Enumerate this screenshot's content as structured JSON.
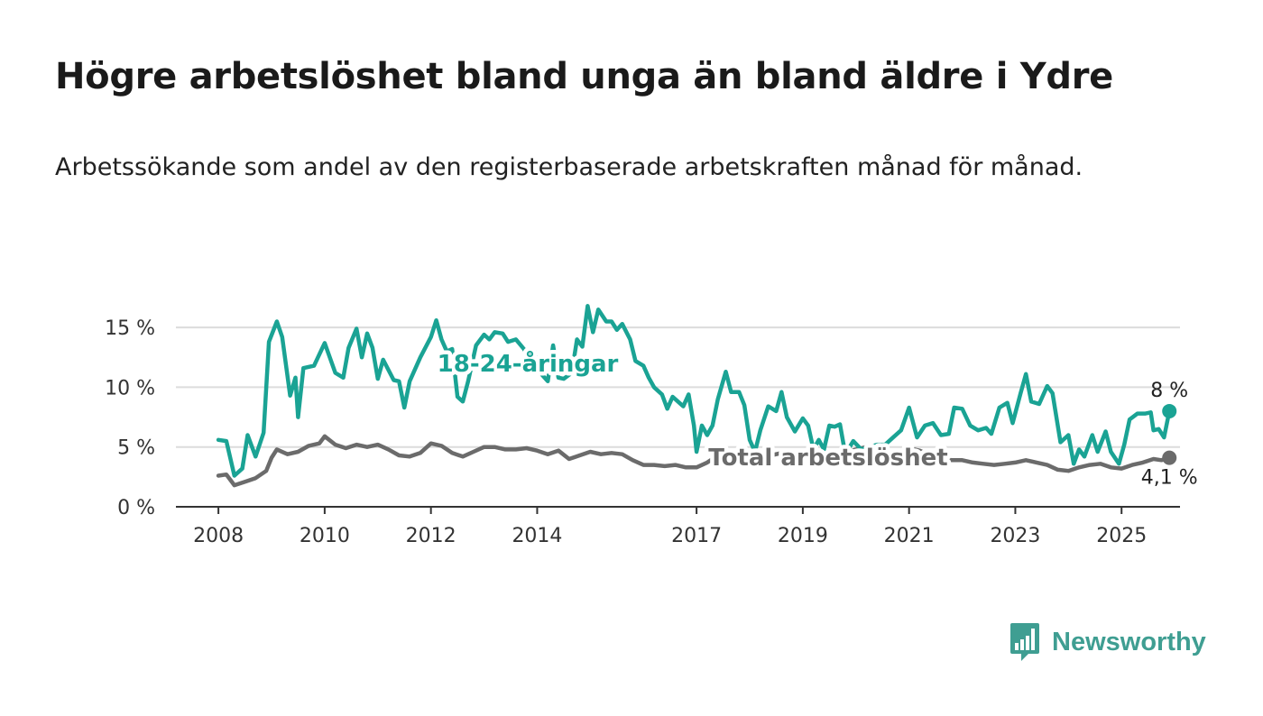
{
  "title": "Högre arbetslöshet bland unga än bland äldre i Ydre",
  "subtitle": "Arbetssökande som andel av den registerbaserade arbetskraften månad för månad.",
  "brand": {
    "name": "Newsworthy",
    "color": "#3f9e92"
  },
  "chart_data": {
    "type": "line",
    "ylim": [
      0,
      17.5
    ],
    "y_ticks": [
      0,
      5,
      10,
      15
    ],
    "y_tick_labels": [
      "0 %",
      "5 %",
      "10 %",
      "15 %"
    ],
    "x_ticks": [
      2008,
      2010,
      2012,
      2014,
      2017,
      2019,
      2021,
      2023,
      2025
    ],
    "x_tick_labels": [
      "2008",
      "2010",
      "2012",
      "2014",
      "2017",
      "2019",
      "2021",
      "2023",
      "2025"
    ],
    "xlim": [
      2007.2,
      2026.1
    ],
    "grid": true,
    "series": [
      {
        "name": "18-24-åringar",
        "color": "#1aa394",
        "end_label": "8 %",
        "points": [
          [
            2008.0,
            5.6
          ],
          [
            2008.15,
            5.5
          ],
          [
            2008.3,
            2.6
          ],
          [
            2008.45,
            3.2
          ],
          [
            2008.55,
            6.0
          ],
          [
            2008.7,
            4.2
          ],
          [
            2008.85,
            6.2
          ],
          [
            2008.95,
            13.8
          ],
          [
            2009.1,
            15.5
          ],
          [
            2009.2,
            14.2
          ],
          [
            2009.35,
            9.3
          ],
          [
            2009.45,
            10.8
          ],
          [
            2009.5,
            7.5
          ],
          [
            2009.6,
            11.6
          ],
          [
            2009.8,
            11.8
          ],
          [
            2010.0,
            13.7
          ],
          [
            2010.2,
            11.2
          ],
          [
            2010.35,
            10.8
          ],
          [
            2010.45,
            13.3
          ],
          [
            2010.6,
            14.9
          ],
          [
            2010.7,
            12.5
          ],
          [
            2010.8,
            14.5
          ],
          [
            2010.9,
            13.3
          ],
          [
            2011.0,
            10.7
          ],
          [
            2011.1,
            12.3
          ],
          [
            2011.3,
            10.6
          ],
          [
            2011.4,
            10.5
          ],
          [
            2011.5,
            8.3
          ],
          [
            2011.6,
            10.5
          ],
          [
            2011.8,
            12.5
          ],
          [
            2012.0,
            14.2
          ],
          [
            2012.1,
            15.6
          ],
          [
            2012.2,
            14.0
          ],
          [
            2012.3,
            13.0
          ],
          [
            2012.4,
            13.2
          ],
          [
            2012.5,
            9.2
          ],
          [
            2012.6,
            8.8
          ],
          [
            2012.7,
            10.5
          ],
          [
            2012.85,
            13.5
          ],
          [
            2013.0,
            14.4
          ],
          [
            2013.1,
            14.0
          ],
          [
            2013.2,
            14.6
          ],
          [
            2013.35,
            14.5
          ],
          [
            2013.45,
            13.8
          ],
          [
            2013.6,
            14.0
          ],
          [
            2013.75,
            13.2
          ],
          [
            2013.85,
            12.5
          ],
          [
            2013.95,
            13.0
          ],
          [
            2014.0,
            11.5
          ],
          [
            2014.2,
            10.5
          ],
          [
            2014.3,
            13.5
          ],
          [
            2014.4,
            10.8
          ],
          [
            2014.5,
            10.7
          ],
          [
            2014.65,
            11.2
          ],
          [
            2014.75,
            14.0
          ],
          [
            2014.85,
            13.4
          ],
          [
            2014.95,
            16.8
          ],
          [
            2015.05,
            14.6
          ],
          [
            2015.15,
            16.5
          ],
          [
            2015.3,
            15.5
          ],
          [
            2015.4,
            15.5
          ],
          [
            2015.5,
            14.8
          ],
          [
            2015.6,
            15.3
          ],
          [
            2015.75,
            14.0
          ],
          [
            2015.85,
            12.2
          ],
          [
            2016.0,
            11.8
          ],
          [
            2016.1,
            10.8
          ],
          [
            2016.2,
            10.0
          ],
          [
            2016.35,
            9.4
          ],
          [
            2016.45,
            8.2
          ],
          [
            2016.55,
            9.2
          ],
          [
            2016.65,
            8.8
          ],
          [
            2016.75,
            8.4
          ],
          [
            2016.85,
            9.4
          ],
          [
            2016.95,
            6.8
          ],
          [
            2017.0,
            4.6
          ],
          [
            2017.1,
            6.8
          ],
          [
            2017.2,
            6.0
          ],
          [
            2017.3,
            6.8
          ],
          [
            2017.4,
            9.0
          ],
          [
            2017.55,
            11.3
          ],
          [
            2017.65,
            9.6
          ],
          [
            2017.8,
            9.6
          ],
          [
            2017.9,
            8.5
          ],
          [
            2018.0,
            5.6
          ],
          [
            2018.1,
            4.6
          ],
          [
            2018.2,
            6.4
          ],
          [
            2018.35,
            8.4
          ],
          [
            2018.5,
            8.0
          ],
          [
            2018.6,
            9.6
          ],
          [
            2018.7,
            7.5
          ],
          [
            2018.85,
            6.3
          ],
          [
            2019.0,
            7.4
          ],
          [
            2019.1,
            6.8
          ],
          [
            2019.2,
            4.8
          ],
          [
            2019.3,
            5.6
          ],
          [
            2019.4,
            4.8
          ],
          [
            2019.5,
            6.8
          ],
          [
            2019.6,
            6.7
          ],
          [
            2019.7,
            6.9
          ],
          [
            2019.8,
            4.4
          ],
          [
            2019.95,
            5.5
          ],
          [
            2020.1,
            4.8
          ],
          [
            2020.25,
            5.0
          ],
          [
            2020.4,
            5.2
          ],
          [
            2020.55,
            5.2
          ],
          [
            2020.7,
            5.8
          ],
          [
            2020.85,
            6.4
          ],
          [
            2021.0,
            8.3
          ],
          [
            2021.15,
            5.8
          ],
          [
            2021.3,
            6.8
          ],
          [
            2021.45,
            7.0
          ],
          [
            2021.6,
            6.0
          ],
          [
            2021.75,
            6.1
          ],
          [
            2021.85,
            8.3
          ],
          [
            2022.0,
            8.2
          ],
          [
            2022.15,
            6.8
          ],
          [
            2022.3,
            6.4
          ],
          [
            2022.45,
            6.6
          ],
          [
            2022.55,
            6.1
          ],
          [
            2022.7,
            8.3
          ],
          [
            2022.85,
            8.7
          ],
          [
            2022.95,
            7.0
          ],
          [
            2023.1,
            9.5
          ],
          [
            2023.2,
            11.1
          ],
          [
            2023.3,
            8.8
          ],
          [
            2023.45,
            8.6
          ],
          [
            2023.6,
            10.1
          ],
          [
            2023.7,
            9.5
          ],
          [
            2023.85,
            5.4
          ],
          [
            2024.0,
            6.0
          ],
          [
            2024.1,
            3.6
          ],
          [
            2024.2,
            4.8
          ],
          [
            2024.3,
            4.2
          ],
          [
            2024.45,
            6.0
          ],
          [
            2024.55,
            4.6
          ],
          [
            2024.7,
            6.3
          ],
          [
            2024.8,
            4.6
          ],
          [
            2024.95,
            3.6
          ],
          [
            2025.05,
            5.2
          ],
          [
            2025.15,
            7.3
          ],
          [
            2025.3,
            7.8
          ],
          [
            2025.45,
            7.8
          ],
          [
            2025.55,
            7.9
          ],
          [
            2025.6,
            6.4
          ],
          [
            2025.7,
            6.5
          ],
          [
            2025.8,
            5.8
          ],
          [
            2025.9,
            8.0
          ]
        ]
      },
      {
        "name": "Total arbetslöshet",
        "color": "#6b6b6b",
        "end_label": "4,1 %",
        "points": [
          [
            2008.0,
            2.6
          ],
          [
            2008.15,
            2.7
          ],
          [
            2008.3,
            1.8
          ],
          [
            2008.5,
            2.1
          ],
          [
            2008.7,
            2.4
          ],
          [
            2008.9,
            3.0
          ],
          [
            2009.0,
            4.1
          ],
          [
            2009.1,
            4.8
          ],
          [
            2009.3,
            4.4
          ],
          [
            2009.5,
            4.6
          ],
          [
            2009.7,
            5.1
          ],
          [
            2009.9,
            5.3
          ],
          [
            2010.0,
            5.9
          ],
          [
            2010.2,
            5.2
          ],
          [
            2010.4,
            4.9
          ],
          [
            2010.6,
            5.2
          ],
          [
            2010.8,
            5.0
          ],
          [
            2011.0,
            5.2
          ],
          [
            2011.2,
            4.8
          ],
          [
            2011.4,
            4.3
          ],
          [
            2011.6,
            4.2
          ],
          [
            2011.8,
            4.5
          ],
          [
            2012.0,
            5.3
          ],
          [
            2012.2,
            5.1
          ],
          [
            2012.4,
            4.5
          ],
          [
            2012.6,
            4.2
          ],
          [
            2012.8,
            4.6
          ],
          [
            2013.0,
            5.0
          ],
          [
            2013.2,
            5.0
          ],
          [
            2013.4,
            4.8
          ],
          [
            2013.6,
            4.8
          ],
          [
            2013.8,
            4.9
          ],
          [
            2014.0,
            4.7
          ],
          [
            2014.2,
            4.4
          ],
          [
            2014.4,
            4.7
          ],
          [
            2014.6,
            4.0
          ],
          [
            2014.8,
            4.3
          ],
          [
            2015.0,
            4.6
          ],
          [
            2015.2,
            4.4
          ],
          [
            2015.4,
            4.5
          ],
          [
            2015.6,
            4.4
          ],
          [
            2015.8,
            3.9
          ],
          [
            2016.0,
            3.5
          ],
          [
            2016.2,
            3.5
          ],
          [
            2016.4,
            3.4
          ],
          [
            2016.6,
            3.5
          ],
          [
            2016.8,
            3.3
          ],
          [
            2017.0,
            3.3
          ],
          [
            2017.2,
            3.7
          ],
          [
            2017.4,
            4.3
          ],
          [
            2017.6,
            4.4
          ],
          [
            2017.8,
            4.5
          ],
          [
            2018.0,
            4.2
          ],
          [
            2018.2,
            3.8
          ],
          [
            2018.4,
            4.3
          ],
          [
            2018.6,
            4.5
          ],
          [
            2018.8,
            4.0
          ],
          [
            2019.0,
            4.0
          ],
          [
            2019.2,
            4.2
          ],
          [
            2019.4,
            4.2
          ],
          [
            2019.6,
            4.5
          ],
          [
            2019.8,
            4.5
          ],
          [
            2020.0,
            4.8
          ],
          [
            2020.2,
            5.0
          ],
          [
            2020.4,
            4.7
          ],
          [
            2020.6,
            4.5
          ],
          [
            2020.8,
            4.3
          ],
          [
            2021.0,
            4.9
          ],
          [
            2021.2,
            4.7
          ],
          [
            2021.4,
            4.3
          ],
          [
            2021.6,
            4.1
          ],
          [
            2021.8,
            3.9
          ],
          [
            2022.0,
            3.9
          ],
          [
            2022.2,
            3.7
          ],
          [
            2022.4,
            3.6
          ],
          [
            2022.6,
            3.5
          ],
          [
            2022.8,
            3.6
          ],
          [
            2023.0,
            3.7
          ],
          [
            2023.2,
            3.9
          ],
          [
            2023.4,
            3.7
          ],
          [
            2023.6,
            3.5
          ],
          [
            2023.8,
            3.1
          ],
          [
            2024.0,
            3.0
          ],
          [
            2024.2,
            3.3
          ],
          [
            2024.4,
            3.5
          ],
          [
            2024.6,
            3.6
          ],
          [
            2024.8,
            3.3
          ],
          [
            2025.0,
            3.2
          ],
          [
            2025.2,
            3.5
          ],
          [
            2025.4,
            3.7
          ],
          [
            2025.6,
            4.0
          ],
          [
            2025.75,
            3.9
          ],
          [
            2025.9,
            4.1
          ]
        ]
      }
    ]
  }
}
